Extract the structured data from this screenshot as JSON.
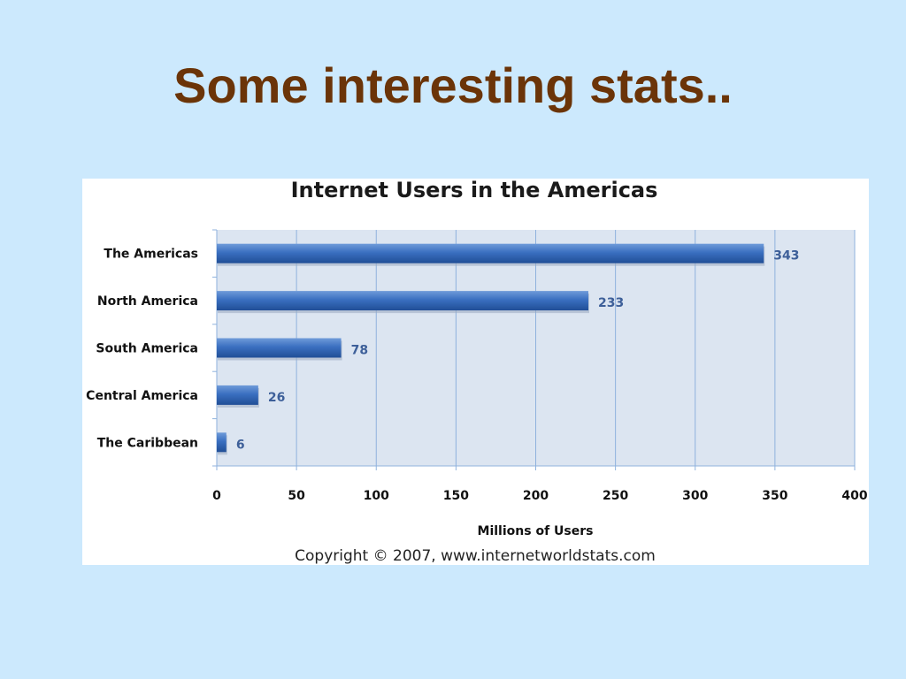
{
  "slide": {
    "title": "Some interesting stats.."
  },
  "colors": {
    "background": "#cce9fd",
    "title": "#6b3408",
    "plot_area": "#dce5f1",
    "bar": "#3a6fc0",
    "data_label": "#3d5f99",
    "gridline": "#8fb2dd"
  },
  "chart_data": {
    "type": "bar",
    "orientation": "horizontal",
    "title": "Internet Users in the Americas",
    "categories": [
      "The Americas",
      "North America",
      "South America",
      "Central America",
      "The Caribbean"
    ],
    "values": [
      343,
      233,
      78,
      26,
      6
    ],
    "data_labels": [
      "343",
      "233",
      "78",
      "26",
      "6"
    ],
    "xlabel": "Millions of Users",
    "ylabel": "",
    "xlim": [
      0,
      400
    ],
    "x_ticks": [
      0,
      50,
      100,
      150,
      200,
      250,
      300,
      350,
      400
    ],
    "grid": true,
    "legend": "none",
    "footnote": "Copyright © 2007, www.internetworldstats.com"
  }
}
